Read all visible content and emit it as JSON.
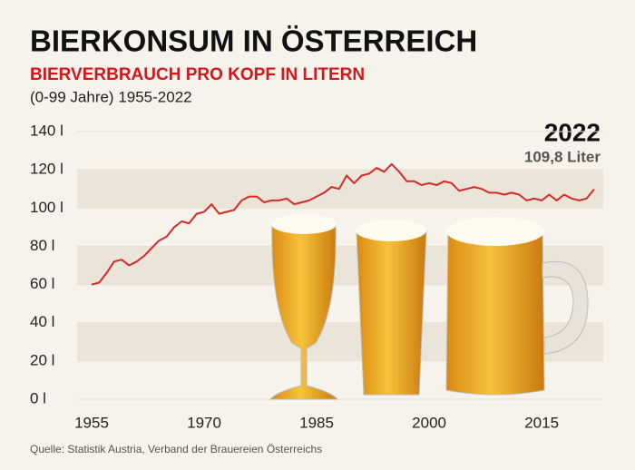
{
  "chart_data": {
    "type": "line",
    "title": "BIERKONSUM IN ÖSTERREICH",
    "subtitle": "BIERVERBRAUCH PRO KOPF IN LITERN",
    "note": "(0-99 Jahre) 1955-2022",
    "annotation_title": "2022",
    "annotation_text": "109,8 Liter",
    "source": "Quelle: Statistik Austria, Verband der Brauereien Österreichs",
    "x": [
      1955,
      1956,
      1957,
      1958,
      1959,
      1960,
      1961,
      1962,
      1963,
      1964,
      1965,
      1966,
      1967,
      1968,
      1969,
      1970,
      1971,
      1972,
      1973,
      1974,
      1975,
      1976,
      1977,
      1978,
      1979,
      1980,
      1981,
      1982,
      1983,
      1984,
      1985,
      1986,
      1987,
      1988,
      1989,
      1990,
      1991,
      1992,
      1993,
      1994,
      1995,
      1996,
      1997,
      1998,
      1999,
      2000,
      2001,
      2002,
      2003,
      2004,
      2005,
      2006,
      2007,
      2008,
      2009,
      2010,
      2011,
      2012,
      2013,
      2014,
      2015,
      2016,
      2017,
      2018,
      2019,
      2020,
      2021,
      2022
    ],
    "series": [
      {
        "name": "Bierverbrauch pro Kopf",
        "color": "#d62a2a",
        "values": [
          60,
          61,
          66,
          72,
          73,
          70,
          72,
          75,
          79,
          83,
          85,
          90,
          93,
          92,
          97,
          98,
          102,
          97,
          98,
          99,
          104,
          106,
          106,
          103,
          104,
          104,
          105,
          102,
          103,
          104,
          106,
          108,
          111,
          110,
          117,
          113,
          117,
          118,
          121,
          119,
          123,
          119,
          114,
          114,
          112,
          113,
          112,
          114,
          113,
          109,
          110,
          111,
          110,
          108,
          108,
          107,
          108,
          107,
          104,
          105,
          104,
          107,
          104,
          107,
          105,
          104,
          105,
          109.8
        ]
      }
    ],
    "xlim": [
      1955,
      2022
    ],
    "xticks": [
      1955,
      1970,
      1985,
      2000,
      2015
    ],
    "ylim": [
      0,
      140
    ],
    "yticks": [
      {
        "value": 0,
        "label": "0 l"
      },
      {
        "value": 20,
        "label": "20 l"
      },
      {
        "value": 40,
        "label": "40 l"
      },
      {
        "value": 60,
        "label": "60 l"
      },
      {
        "value": 80,
        "label": "80 l"
      },
      {
        "value": 100,
        "label": "100 l"
      },
      {
        "value": 120,
        "label": "120 l"
      },
      {
        "value": 140,
        "label": "140 l"
      }
    ],
    "bands": true
  }
}
